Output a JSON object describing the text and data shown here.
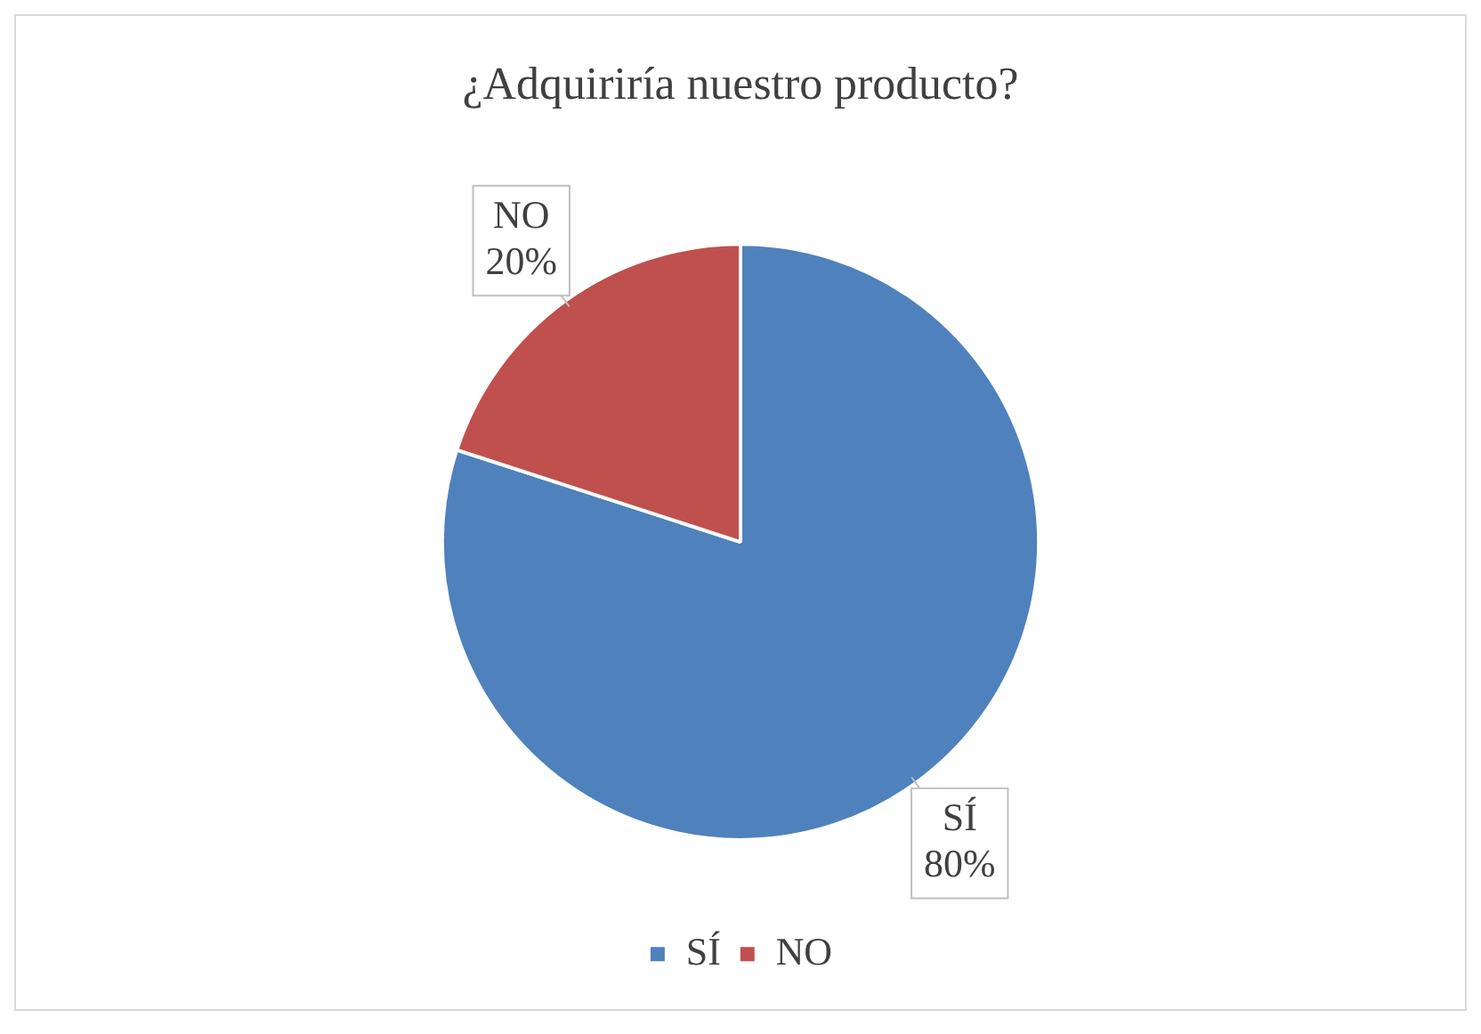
{
  "chart_data": {
    "type": "pie",
    "title": "¿Adquiriría nuestro producto?",
    "categories": [
      "SÍ",
      "NO"
    ],
    "values": [
      80,
      20
    ],
    "colors": [
      "#4f81bd",
      "#c0504d"
    ],
    "value_labels": [
      "80%",
      "20%"
    ],
    "legend": "bottom"
  }
}
